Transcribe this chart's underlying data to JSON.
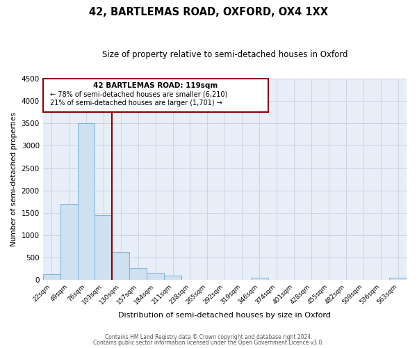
{
  "title": "42, BARTLEMAS ROAD, OXFORD, OX4 1XX",
  "subtitle": "Size of property relative to semi-detached houses in Oxford",
  "xlabel": "Distribution of semi-detached houses by size in Oxford",
  "ylabel": "Number of semi-detached properties",
  "bar_labels": [
    "22sqm",
    "49sqm",
    "76sqm",
    "103sqm",
    "130sqm",
    "157sqm",
    "184sqm",
    "211sqm",
    "238sqm",
    "265sqm",
    "292sqm",
    "319sqm",
    "346sqm",
    "374sqm",
    "401sqm",
    "428sqm",
    "455sqm",
    "482sqm",
    "509sqm",
    "536sqm",
    "563sqm"
  ],
  "bar_values": [
    130,
    1700,
    3500,
    1450,
    620,
    270,
    160,
    95,
    0,
    0,
    0,
    0,
    55,
    0,
    0,
    0,
    0,
    0,
    0,
    0,
    55
  ],
  "bar_color": "#cfe0f0",
  "bar_edge_color": "#7ab3d8",
  "red_line_bin": 4,
  "annotation_title": "42 BARTLEMAS ROAD: 119sqm",
  "annotation_line1": "← 78% of semi-detached houses are smaller (6,210)",
  "annotation_line2": "21% of semi-detached houses are larger (1,701) →",
  "vline_color": "#8b0000",
  "box_edge_color": "#8b0000",
  "ylim": [
    0,
    4500
  ],
  "yticks": [
    0,
    500,
    1000,
    1500,
    2000,
    2500,
    3000,
    3500,
    4000,
    4500
  ],
  "footer_line1": "Contains HM Land Registry data © Crown copyright and database right 2024.",
  "footer_line2": "Contains public sector information licensed under the Open Government Licence v3.0.",
  "background_color": "#ffffff",
  "plot_bg_color": "#e8eef8",
  "grid_color": "#c8d0dc"
}
